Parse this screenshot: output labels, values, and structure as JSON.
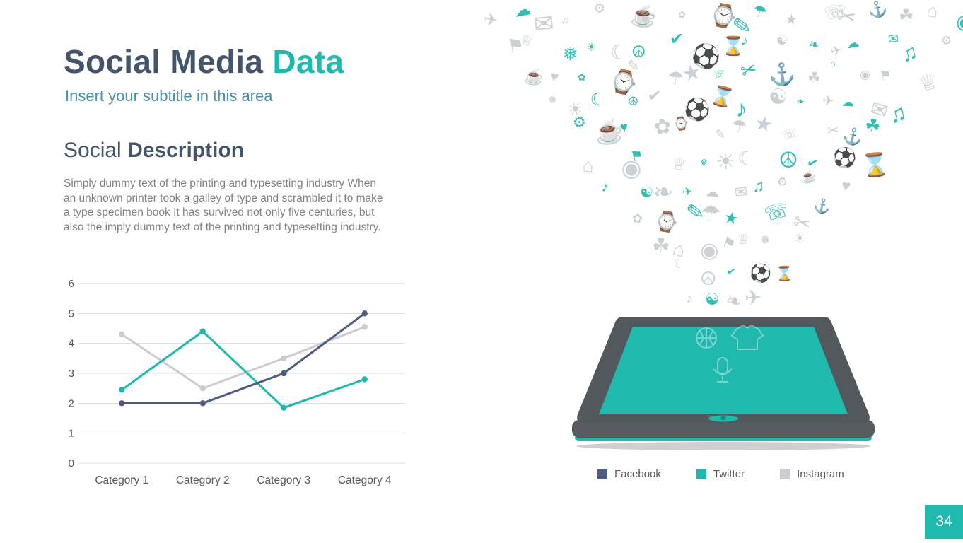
{
  "slide": {
    "title_primary": "Social Media",
    "title_accent": "Data",
    "subtitle": "Insert your subtitle in this area",
    "section_light": "Social",
    "section_bold": "Description",
    "body_text": "Simply dummy text of the printing and typesetting industry When an unknown printer took a galley of type and scrambled it to make a type specimen book It has survived not only five centuries, but also the imply dummy text of the printing and typesetting industry.",
    "page_number": "34"
  },
  "colors": {
    "accent_teal": "#1fb9ae",
    "dark_slate": "#44546a",
    "subtitle_blue": "#4a8fad",
    "body_gray": "#7f8285",
    "axis_gray": "#595959",
    "grid_gray": "#d9dcde",
    "icon_gray": "#cbd0d4"
  },
  "chart_data": {
    "type": "line",
    "title": "",
    "xlabel": "",
    "ylabel": "",
    "categories": [
      "Category 1",
      "Category 2",
      "Category 3",
      "Category 4"
    ],
    "series": [
      {
        "name": "Facebook",
        "color": "#4d5d82",
        "values": [
          2,
          2,
          3,
          5
        ]
      },
      {
        "name": "Twitter",
        "color": "#1cb9ac",
        "values": [
          2.45,
          4.4,
          1.85,
          2.8
        ]
      },
      {
        "name": "Instagram",
        "color": "#c9ccd0",
        "values": [
          4.3,
          2.5,
          3.5,
          4.55
        ]
      }
    ],
    "ylim": [
      0,
      6
    ],
    "yticks": [
      0,
      1,
      2,
      3,
      4,
      5,
      6
    ],
    "grid": true,
    "legend_position": "bottom-right"
  },
  "decorative_icons": {
    "teal": "#35bdb2",
    "gray": "#cbd0d4",
    "glyphs": [
      {
        "name": "plane-icon",
        "glyph": "✈"
      },
      {
        "name": "cloud-icon",
        "glyph": "☁"
      },
      {
        "name": "envelope-icon",
        "glyph": "✉"
      },
      {
        "name": "music-note-icon",
        "glyph": "♫"
      },
      {
        "name": "gear-icon",
        "glyph": "⚙"
      },
      {
        "name": "coffee-icon",
        "glyph": "☕"
      },
      {
        "name": "heart-icon",
        "glyph": "♥"
      },
      {
        "name": "flower-icon",
        "glyph": "✿"
      },
      {
        "name": "watch-icon",
        "glyph": "⌚"
      },
      {
        "name": "pencil-icon",
        "glyph": "✎"
      },
      {
        "name": "umbrella-icon",
        "glyph": "☂"
      },
      {
        "name": "star-icon",
        "glyph": "★"
      },
      {
        "name": "phone-icon",
        "glyph": "☏"
      },
      {
        "name": "scissors-icon",
        "glyph": "✂"
      },
      {
        "name": "anchor-icon",
        "glyph": "⚓"
      },
      {
        "name": "clover-icon",
        "glyph": "☘"
      },
      {
        "name": "house-icon",
        "glyph": "⌂"
      },
      {
        "name": "target-icon",
        "glyph": "◉"
      },
      {
        "name": "flag-icon",
        "glyph": "⚑"
      },
      {
        "name": "crown-icon",
        "glyph": "♕"
      },
      {
        "name": "snowflake-icon",
        "glyph": "❅"
      },
      {
        "name": "sun-icon",
        "glyph": "☀"
      },
      {
        "name": "moon-icon",
        "glyph": "☾"
      },
      {
        "name": "peace-icon",
        "glyph": "☮"
      },
      {
        "name": "check-icon",
        "glyph": "✔"
      },
      {
        "name": "soccer-ball-icon",
        "glyph": "⚽"
      },
      {
        "name": "hourglass-icon",
        "glyph": "⌛"
      },
      {
        "name": "note-icon",
        "glyph": "♪"
      },
      {
        "name": "globe-icon",
        "glyph": "☯"
      },
      {
        "name": "leaf-icon",
        "glyph": "❧"
      }
    ]
  }
}
